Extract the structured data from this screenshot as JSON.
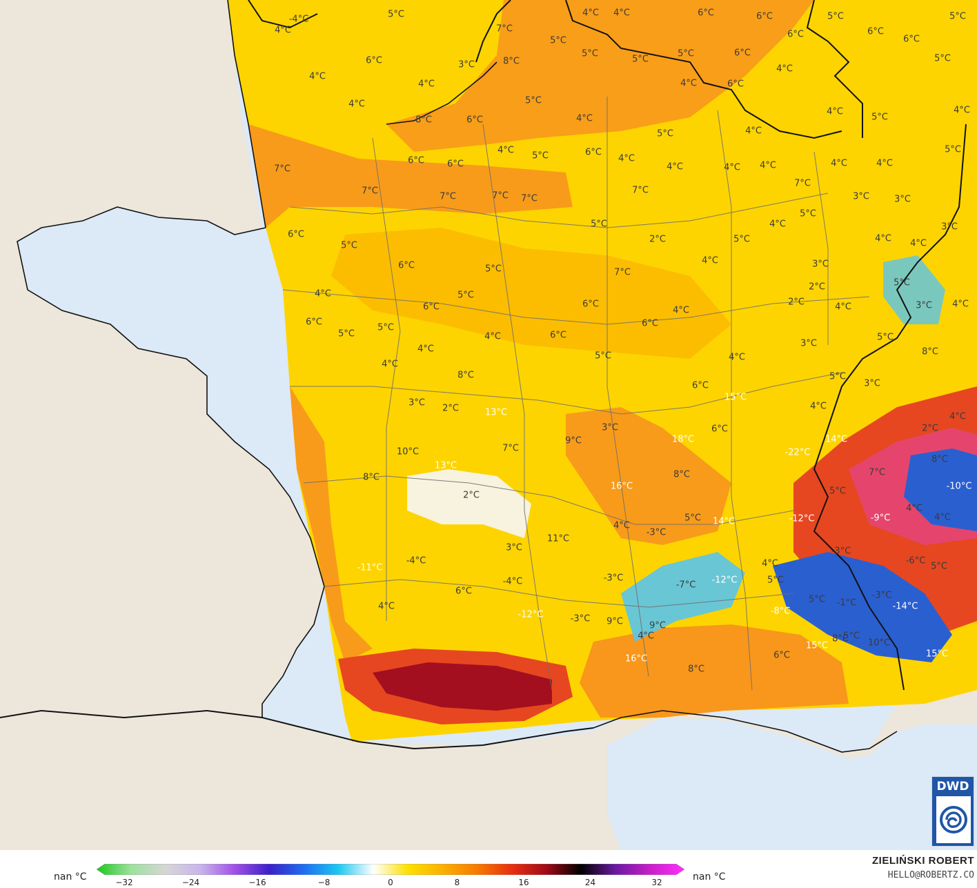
{
  "map": {
    "colors": {
      "sea": "#dce9f7",
      "land": "#ece6db",
      "border": "#111111",
      "region": "#6f6f6f",
      "temp_yellow": "#fdd400",
      "temp_amber": "#fbb700",
      "temp_orange": "#f7901e",
      "temp_red": "#e64720",
      "temp_darkred": "#a30f1f",
      "temp_white": "#f6f6f6",
      "temp_cyan": "#59c4ec",
      "temp_blue": "#2a5fd0",
      "temp_pink": "#e4457a"
    },
    "labels": [
      {
        "text": "4°C",
        "v": 4
      },
      {
        "text": "-4°C",
        "v": -4
      },
      {
        "text": "5°C",
        "v": 5
      },
      {
        "text": "4°C",
        "v": 4
      },
      {
        "text": "4°C",
        "v": 4
      },
      {
        "text": "6°C",
        "v": 6
      },
      {
        "text": "6°C",
        "v": 6
      },
      {
        "text": "5°C",
        "v": 5
      },
      {
        "text": "5°C",
        "v": 5
      },
      {
        "text": "7°C",
        "v": 7
      },
      {
        "text": "5°C",
        "v": 5
      },
      {
        "text": "5°C",
        "v": 5
      },
      {
        "text": "5°C",
        "v": 5
      },
      {
        "text": "6°C",
        "v": 6
      },
      {
        "text": "6°C",
        "v": 6
      },
      {
        "text": "6°C",
        "v": 6
      },
      {
        "text": "5°C",
        "v": 5
      },
      {
        "text": "4°C",
        "v": 4
      },
      {
        "text": "4°C",
        "v": 4
      },
      {
        "text": "3°C",
        "v": 3
      },
      {
        "text": "8°C",
        "v": 8
      },
      {
        "text": "5°C",
        "v": 5
      },
      {
        "text": "4°C",
        "v": 4
      },
      {
        "text": "6°C",
        "v": 6
      },
      {
        "text": "6°C",
        "v": 6
      },
      {
        "text": "4°C",
        "v": 4
      },
      {
        "text": "5°C",
        "v": 5
      },
      {
        "text": "4°C",
        "v": 4
      },
      {
        "text": "6°C",
        "v": 6
      },
      {
        "text": "8°C",
        "v": 8
      },
      {
        "text": "6°C",
        "v": 6
      },
      {
        "text": "4°C",
        "v": 4
      },
      {
        "text": "5°C",
        "v": 5
      },
      {
        "text": "4°C",
        "v": 4
      },
      {
        "text": "4°C",
        "v": 4
      },
      {
        "text": "5°C",
        "v": 5
      },
      {
        "text": "4°C",
        "v": 4
      },
      {
        "text": "5°C",
        "v": 5
      },
      {
        "text": "7°C",
        "v": 7
      },
      {
        "text": "7°C",
        "v": 7
      },
      {
        "text": "7°C",
        "v": 7
      },
      {
        "text": "6°C",
        "v": 6
      },
      {
        "text": "6°C",
        "v": 6
      },
      {
        "text": "4°C",
        "v": 4
      },
      {
        "text": "5°C",
        "v": 5
      },
      {
        "text": "6°C",
        "v": 6
      },
      {
        "text": "4°C",
        "v": 4
      },
      {
        "text": "4°C",
        "v": 4
      },
      {
        "text": "4°C",
        "v": 4
      },
      {
        "text": "4°C",
        "v": 4
      },
      {
        "text": "7°C",
        "v": 7
      },
      {
        "text": "7°C",
        "v": 7
      },
      {
        "text": "7°C",
        "v": 7
      },
      {
        "text": "7°C",
        "v": 7
      },
      {
        "text": "4°C",
        "v": 4
      },
      {
        "text": "3°C",
        "v": 3
      },
      {
        "text": "5°C",
        "v": 5
      },
      {
        "text": "4°C",
        "v": 4
      },
      {
        "text": "3°C",
        "v": 3
      },
      {
        "text": "4°C",
        "v": 4
      },
      {
        "text": "3°C",
        "v": 3
      },
      {
        "text": "4°C",
        "v": 4
      },
      {
        "text": "6°C",
        "v": 6
      },
      {
        "text": "5°C",
        "v": 5
      },
      {
        "text": "5°C",
        "v": 5
      },
      {
        "text": "2°C",
        "v": 2
      },
      {
        "text": "6°C",
        "v": 6
      },
      {
        "text": "5°C",
        "v": 5
      },
      {
        "text": "7°C",
        "v": 7
      },
      {
        "text": "3°C",
        "v": 3
      },
      {
        "text": "4°C",
        "v": 4
      },
      {
        "text": "4°C",
        "v": 4
      },
      {
        "text": "5°C",
        "v": 5
      },
      {
        "text": "5°C",
        "v": 5
      },
      {
        "text": "2°C",
        "v": 2
      },
      {
        "text": "2°C",
        "v": 2
      },
      {
        "text": "4°C",
        "v": 4
      },
      {
        "text": "4°C",
        "v": 4
      },
      {
        "text": "5°C",
        "v": 5
      },
      {
        "text": "6°C",
        "v": 6
      },
      {
        "text": "6°C",
        "v": 6
      },
      {
        "text": "4°C",
        "v": 4
      },
      {
        "text": "3°C",
        "v": 3
      },
      {
        "text": "6°C",
        "v": 6
      },
      {
        "text": "5°C",
        "v": 5
      },
      {
        "text": "5°C",
        "v": 5
      },
      {
        "text": "6°C",
        "v": 6
      },
      {
        "text": "4°C",
        "v": 4
      },
      {
        "text": "4°C",
        "v": 4
      },
      {
        "text": "6°C",
        "v": 6
      },
      {
        "text": "4°C",
        "v": 4
      },
      {
        "text": "3°C",
        "v": 3
      },
      {
        "text": "5°C",
        "v": 5
      },
      {
        "text": "4°C",
        "v": 4
      },
      {
        "text": "4°C",
        "v": 4
      },
      {
        "text": "5°C",
        "v": 5
      },
      {
        "text": "8°C",
        "v": 8
      },
      {
        "text": "8°C",
        "v": 8
      },
      {
        "text": "6°C",
        "v": 6
      },
      {
        "text": "5°C",
        "v": 5
      },
      {
        "text": "3°C",
        "v": 3
      },
      {
        "text": "15°C",
        "v": 15
      },
      {
        "text": "4°C",
        "v": 4
      },
      {
        "text": "4°C",
        "v": 4
      },
      {
        "text": "3°C",
        "v": 3
      },
      {
        "text": "2°C",
        "v": 2
      },
      {
        "text": "13°C",
        "v": 13
      },
      {
        "text": "3°C",
        "v": 3
      },
      {
        "text": "2°C",
        "v": 2
      },
      {
        "text": "6°C",
        "v": 6
      },
      {
        "text": "18°C",
        "v": 18
      },
      {
        "text": "14°C",
        "v": 14
      },
      {
        "text": "9°C",
        "v": 9
      },
      {
        "text": "10°C",
        "v": 10
      },
      {
        "text": "-22°C",
        "v": -22
      },
      {
        "text": "8°C",
        "v": 8
      },
      {
        "text": "7°C",
        "v": 7
      },
      {
        "text": "7°C",
        "v": 7
      },
      {
        "text": "13°C",
        "v": 13
      },
      {
        "text": "16°C",
        "v": 16
      },
      {
        "text": "-10°C",
        "v": -10
      },
      {
        "text": "5°C",
        "v": 5
      },
      {
        "text": "8°C",
        "v": 8
      },
      {
        "text": "8°C",
        "v": 8
      },
      {
        "text": "2°C",
        "v": 2
      },
      {
        "text": "4°C",
        "v": 4
      },
      {
        "text": "4°C",
        "v": 4
      },
      {
        "text": "-9°C",
        "v": -9
      },
      {
        "text": "-12°C",
        "v": -12
      },
      {
        "text": "14°C",
        "v": 14
      },
      {
        "text": "11°C",
        "v": 11
      },
      {
        "text": "3°C",
        "v": 3
      },
      {
        "text": "5°C",
        "v": 5
      },
      {
        "text": "4°C",
        "v": 4
      },
      {
        "text": "-3°C",
        "v": -3
      },
      {
        "text": "-3°C",
        "v": -3
      },
      {
        "text": "-6°C",
        "v": -6
      },
      {
        "text": "5°C",
        "v": 5
      },
      {
        "text": "-11°C",
        "v": -11
      },
      {
        "text": "-4°C",
        "v": -4
      },
      {
        "text": "4°C",
        "v": 4
      },
      {
        "text": "-3°C",
        "v": -3
      },
      {
        "text": "-7°C",
        "v": -7
      },
      {
        "text": "-12°C",
        "v": -12
      },
      {
        "text": "5°C",
        "v": 5
      },
      {
        "text": "6°C",
        "v": 6
      },
      {
        "text": "5°C",
        "v": 5
      },
      {
        "text": "-4°C",
        "v": -4
      },
      {
        "text": "-3°C",
        "v": -3
      },
      {
        "text": "4°C",
        "v": 4
      },
      {
        "text": "-8°C",
        "v": -8
      },
      {
        "text": "-1°C",
        "v": -1
      },
      {
        "text": "-14°C",
        "v": -14
      },
      {
        "text": "-12°C",
        "v": -12
      },
      {
        "text": "-3°C",
        "v": -3
      },
      {
        "text": "9°C",
        "v": 9
      },
      {
        "text": "9°C",
        "v": 9
      },
      {
        "text": "5°C",
        "v": 5
      },
      {
        "text": "4°C",
        "v": 4
      },
      {
        "text": "6°C",
        "v": 6
      },
      {
        "text": "15°C",
        "v": 15
      },
      {
        "text": "8°C",
        "v": 8
      },
      {
        "text": "10°C",
        "v": 10
      },
      {
        "text": "15°C",
        "v": 15
      },
      {
        "text": "16°C",
        "v": 16
      },
      {
        "text": "8°C",
        "v": 8
      }
    ]
  },
  "logo": {
    "text": "DWD"
  },
  "legend": {
    "unit_left": "nan °C",
    "unit_right": "nan °C",
    "ticks": [
      "−32",
      "−24",
      "−16",
      "−8",
      "0",
      "8",
      "16",
      "24",
      "32"
    ],
    "stops": [
      "#1ec81e",
      "#9ee09e",
      "#d6d6d6",
      "#c9b5ec",
      "#a050e6",
      "#3c20c8",
      "#1e6ef0",
      "#1ec8f0",
      "#ffffff",
      "#fde000",
      "#fbb000",
      "#f77a00",
      "#e83010",
      "#a00a18",
      "#000000",
      "#6a1aa0",
      "#c81ec8",
      "#ff30ff"
    ]
  },
  "credits": {
    "name": "ZIELIŃSKI ROBERT",
    "email": "HELLO@ROBERTZ.CO"
  }
}
